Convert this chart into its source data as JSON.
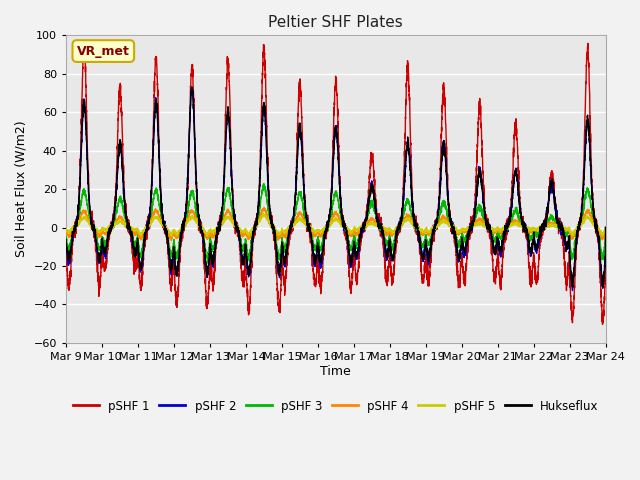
{
  "title": "Peltier SHF Plates",
  "xlabel": "Time",
  "ylabel": "Soil Heat Flux (W/m2)",
  "ylim": [
    -60,
    100
  ],
  "yticks": [
    -60,
    -40,
    -20,
    0,
    20,
    40,
    60,
    80,
    100
  ],
  "xtick_labels": [
    "Mar 9",
    "Mar 10",
    "Mar 11",
    "Mar 12",
    "Mar 13",
    "Mar 14",
    "Mar 15",
    "Mar 16",
    "Mar 17",
    "Mar 18",
    "Mar 19",
    "Mar 20",
    "Mar 21",
    "Mar 22",
    "Mar 23",
    "Mar 24"
  ],
  "bg_color": "#e8e8e8",
  "fig_bg_color": "#f2f2f2",
  "grid_color": "#ffffff",
  "annotation_text": "VR_met",
  "annotation_box_facecolor": "#ffffcc",
  "annotation_box_edgecolor": "#ccaa00",
  "annotation_text_color": "#880000",
  "series_colors": {
    "pSHF 1": "#cc0000",
    "pSHF 2": "#0000cc",
    "pSHF 3": "#00bb00",
    "pSHF 4": "#ff8800",
    "pSHF 5": "#cccc00",
    "Hukseflux": "#000000"
  },
  "legend_labels": [
    "pSHF 1",
    "pSHF 2",
    "pSHF 3",
    "pSHF 4",
    "pSHF 5",
    "Hukseflux"
  ],
  "n_days": 15,
  "peaks1": [
    92,
    70,
    85,
    78,
    83,
    89,
    72,
    73,
    35,
    80,
    70,
    60,
    50,
    25,
    88
  ],
  "troughs1": [
    27,
    20,
    28,
    37,
    27,
    39,
    27,
    28,
    25,
    25,
    25,
    25,
    25,
    25,
    43
  ],
  "peaks2": [
    63,
    42,
    63,
    70,
    57,
    60,
    50,
    50,
    20,
    42,
    42,
    28,
    28,
    22,
    52
  ],
  "troughs2": [
    16,
    12,
    20,
    22,
    17,
    22,
    17,
    17,
    14,
    15,
    15,
    12,
    12,
    10,
    27
  ],
  "peaks3": [
    18,
    14,
    18,
    17,
    19,
    20,
    17,
    17,
    12,
    13,
    12,
    10,
    8,
    5,
    18
  ],
  "troughs3": [
    10,
    8,
    13,
    14,
    10,
    14,
    10,
    10,
    8,
    9,
    8,
    6,
    5,
    3,
    14
  ],
  "peaks4": [
    8,
    5,
    8,
    8,
    8,
    9,
    7,
    7,
    4,
    6,
    5,
    4,
    3,
    2,
    8
  ],
  "troughs4": [
    4,
    3,
    5,
    5,
    4,
    5,
    4,
    4,
    3,
    3,
    3,
    2,
    2,
    1,
    5
  ],
  "peaks5": [
    5,
    3,
    5,
    5,
    5,
    6,
    4,
    4,
    2,
    4,
    3,
    2,
    2,
    1,
    5
  ],
  "troughs5": [
    2,
    1,
    3,
    3,
    2,
    3,
    2,
    2,
    1,
    2,
    2,
    1,
    1,
    1,
    3
  ],
  "peaks_huk": [
    63,
    42,
    63,
    70,
    58,
    62,
    50,
    50,
    20,
    42,
    42,
    28,
    28,
    22,
    53
  ],
  "troughs_huk": [
    15,
    12,
    19,
    21,
    16,
    21,
    16,
    16,
    13,
    14,
    14,
    11,
    11,
    9,
    26
  ]
}
